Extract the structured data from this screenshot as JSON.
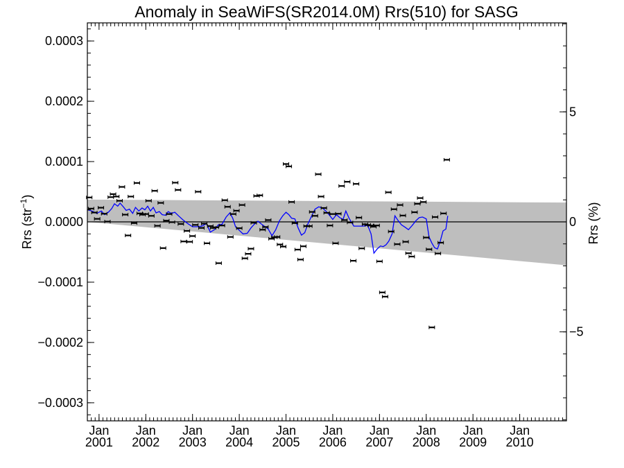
{
  "chart_data": {
    "type": "scatter",
    "title": "Anomaly in SeaWiFS(SR2014.0M) Rrs(510) for SASG",
    "ylabel_left": "Rrs (str",
    "ylabel_left_sup": "−1",
    "ylabel_left_close": ")",
    "ylabel_right": "Rrs (%)",
    "x_range": [
      2000.75,
      2011.0
    ],
    "ylim_left": [
      -0.00033,
      0.00033
    ],
    "ylim_right": [
      -9.045,
      9.045
    ],
    "y_ticks_left": [
      {
        "value": 0.0003,
        "label": "0.0003"
      },
      {
        "value": 0.0002,
        "label": "0.0002"
      },
      {
        "value": 0.0001,
        "label": "0.0001"
      },
      {
        "value": 0.0,
        "label": "0.0000"
      },
      {
        "value": -0.0001,
        "label": "−0.0001"
      },
      {
        "value": -0.0002,
        "label": "−0.0002"
      },
      {
        "value": -0.0003,
        "label": "−0.0003"
      }
    ],
    "y_ticks_right": [
      {
        "value": 5,
        "label": "5"
      },
      {
        "value": 0,
        "label": "0"
      },
      {
        "value": -5,
        "label": "−5"
      }
    ],
    "x_ticks": [
      {
        "value": 2001.0,
        "month": "Jan",
        "year": "2001"
      },
      {
        "value": 2002.0,
        "month": "Jan",
        "year": "2002"
      },
      {
        "value": 2003.0,
        "month": "Jan",
        "year": "2003"
      },
      {
        "value": 2004.0,
        "month": "Jan",
        "year": "2004"
      },
      {
        "value": 2005.0,
        "month": "Jan",
        "year": "2005"
      },
      {
        "value": 2006.0,
        "month": "Jan",
        "year": "2006"
      },
      {
        "value": 2007.0,
        "month": "Jan",
        "year": "2007"
      },
      {
        "value": 2008.0,
        "month": "Jan",
        "year": "2008"
      },
      {
        "value": 2009.0,
        "month": "Jan",
        "year": "2009"
      },
      {
        "value": 2010.0,
        "month": "Jan",
        "year": "2010"
      }
    ],
    "band": {
      "x": [
        2000.75,
        2011.0
      ],
      "upper": [
        3.7e-05,
        3.2e-05
      ],
      "lower": [
        0.0,
        -7.2e-05
      ]
    },
    "zero_line": 0.0,
    "colors": {
      "band": "#bebebe",
      "line": "#0000ff",
      "points": "#000000"
    },
    "points": [
      {
        "x": 2000.79,
        "y": 4.05e-05
      },
      {
        "x": 2000.83,
        "y": 2.2e-05
      },
      {
        "x": 2000.9,
        "y": 1.55e-05
      },
      {
        "x": 2000.96,
        "y": 5e-06
      },
      {
        "x": 2001.04,
        "y": 2.35e-05
      },
      {
        "x": 2001.11,
        "y": 1.35e-05
      },
      {
        "x": 2001.18,
        "y": 5e-07
      },
      {
        "x": 2001.25,
        "y": 4.1e-05
      },
      {
        "x": 2001.3,
        "y": 4.6e-05
      },
      {
        "x": 2001.37,
        "y": 4.2e-05
      },
      {
        "x": 2001.44,
        "y": 3.5e-05
      },
      {
        "x": 2001.49,
        "y": 5.8e-05
      },
      {
        "x": 2001.56,
        "y": 1.2e-05
      },
      {
        "x": 2001.62,
        "y": -2.25e-05
      },
      {
        "x": 2001.68,
        "y": 4.2e-05
      },
      {
        "x": 2001.75,
        "y": -2e-06
      },
      {
        "x": 2001.81,
        "y": 6.45e-05
      },
      {
        "x": 2001.87,
        "y": 1.4e-05
      },
      {
        "x": 2001.93,
        "y": 1.2e-05
      },
      {
        "x": 2002.0,
        "y": 1.3e-05
      },
      {
        "x": 2002.06,
        "y": 3.5e-05
      },
      {
        "x": 2002.12,
        "y": 1e-05
      },
      {
        "x": 2002.19,
        "y": 5.15e-05
      },
      {
        "x": 2002.25,
        "y": -6.5e-06
      },
      {
        "x": 2002.32,
        "y": 3.15e-05
      },
      {
        "x": 2002.37,
        "y": -4.35e-05
      },
      {
        "x": 2002.44,
        "y": 2e-06
      },
      {
        "x": 2002.5,
        "y": 1.3e-05
      },
      {
        "x": 2002.56,
        "y": -5e-07
      },
      {
        "x": 2002.63,
        "y": 6.5e-05
      },
      {
        "x": 2002.69,
        "y": 5.3e-05
      },
      {
        "x": 2002.75,
        "y": -3.5e-06
      },
      {
        "x": 2002.81,
        "y": -3.25e-05
      },
      {
        "x": 2002.88,
        "y": -1.5e-05
      },
      {
        "x": 2002.94,
        "y": -3.3e-05
      },
      {
        "x": 2003.0,
        "y": -2.35e-05
      },
      {
        "x": 2003.06,
        "y": -5e-06
      },
      {
        "x": 2003.12,
        "y": 5e-05
      },
      {
        "x": 2003.19,
        "y": -1e-05
      },
      {
        "x": 2003.25,
        "y": -3e-06
      },
      {
        "x": 2003.31,
        "y": -3.55e-05
      },
      {
        "x": 2003.38,
        "y": -7e-06
      },
      {
        "x": 2003.44,
        "y": -1e-05
      },
      {
        "x": 2003.5,
        "y": -9e-06
      },
      {
        "x": 2003.56,
        "y": -6.85e-05
      },
      {
        "x": 2003.63,
        "y": -6e-06
      },
      {
        "x": 2003.69,
        "y": 3.6e-05
      },
      {
        "x": 2003.75,
        "y": 2.5e-05
      },
      {
        "x": 2003.81,
        "y": -2.5e-05
      },
      {
        "x": 2003.87,
        "y": 1.3e-05
      },
      {
        "x": 2003.94,
        "y": 1.85e-05
      },
      {
        "x": 2004.0,
        "y": -1.05e-05
      },
      {
        "x": 2004.06,
        "y": 2.8e-05
      },
      {
        "x": 2004.12,
        "y": -6.05e-05
      },
      {
        "x": 2004.19,
        "y": -5.3e-05
      },
      {
        "x": 2004.25,
        "y": -4.45e-05
      },
      {
        "x": 2004.31,
        "y": -1.5e-06
      },
      {
        "x": 2004.37,
        "y": 4.3e-05
      },
      {
        "x": 2004.44,
        "y": 4.4e-05
      },
      {
        "x": 2004.5,
        "y": -1.3e-05
      },
      {
        "x": 2004.56,
        "y": -8.5e-06
      },
      {
        "x": 2004.62,
        "y": 3e-06
      },
      {
        "x": 2004.69,
        "y": -2.8e-05
      },
      {
        "x": 2004.75,
        "y": -2.55e-05
      },
      {
        "x": 2004.81,
        "y": -2.5e-05
      },
      {
        "x": 2004.87,
        "y": -3.75e-05
      },
      {
        "x": 2004.94,
        "y": -4.1e-05
      },
      {
        "x": 2005.0,
        "y": 9.6e-05
      },
      {
        "x": 2005.06,
        "y": 9.2e-05
      },
      {
        "x": 2005.12,
        "y": 3.3e-05
      },
      {
        "x": 2005.19,
        "y": -2e-06
      },
      {
        "x": 2005.25,
        "y": -4.6e-05
      },
      {
        "x": 2005.31,
        "y": -6.25e-05
      },
      {
        "x": 2005.37,
        "y": -4.05e-05
      },
      {
        "x": 2005.44,
        "y": -7e-06
      },
      {
        "x": 2005.5,
        "y": -7e-06
      },
      {
        "x": 2005.56,
        "y": 1.65e-05
      },
      {
        "x": 2005.62,
        "y": 1e-05
      },
      {
        "x": 2005.69,
        "y": 7.9e-05
      },
      {
        "x": 2005.75,
        "y": 4.2e-05
      },
      {
        "x": 2005.81,
        "y": 2.3e-05
      },
      {
        "x": 2005.87,
        "y": 1.5e-05
      },
      {
        "x": 2005.94,
        "y": -6e-06
      },
      {
        "x": 2006.0,
        "y": 1.3e-05
      },
      {
        "x": 2006.06,
        "y": -3.55e-05
      },
      {
        "x": 2006.12,
        "y": 1.35e-05
      },
      {
        "x": 2006.19,
        "y": 5.95e-05
      },
      {
        "x": 2006.25,
        "y": 3e-06
      },
      {
        "x": 2006.31,
        "y": 6.65e-05
      },
      {
        "x": 2006.37,
        "y": -1e-06
      },
      {
        "x": 2006.44,
        "y": -6.45e-05
      },
      {
        "x": 2006.5,
        "y": 6.3e-05
      },
      {
        "x": 2006.56,
        "y": 7e-06
      },
      {
        "x": 2006.62,
        "y": -4.4e-05
      },
      {
        "x": 2006.69,
        "y": -4e-06
      },
      {
        "x": 2006.75,
        "y": -5e-06
      },
      {
        "x": 2006.81,
        "y": -6e-06
      },
      {
        "x": 2006.87,
        "y": -8e-06
      },
      {
        "x": 2006.94,
        "y": -6e-06
      },
      {
        "x": 2007.0,
        "y": -6.55e-05
      },
      {
        "x": 2007.06,
        "y": -0.000117
      },
      {
        "x": 2007.12,
        "y": -0.000124
      },
      {
        "x": 2007.19,
        "y": 4.9e-05
      },
      {
        "x": 2007.25,
        "y": -1.6e-05
      },
      {
        "x": 2007.31,
        "y": 2.1e-05
      },
      {
        "x": 2007.38,
        "y": -3.7e-05
      },
      {
        "x": 2007.44,
        "y": 2.8e-05
      },
      {
        "x": 2007.5,
        "y": 1.05e-05
      },
      {
        "x": 2007.56,
        "y": -3.3e-05
      },
      {
        "x": 2007.62,
        "y": -5.2e-05
      },
      {
        "x": 2007.69,
        "y": -5.75e-05
      },
      {
        "x": 2007.75,
        "y": 1.6e-05
      },
      {
        "x": 2007.81,
        "y": 3e-05
      },
      {
        "x": 2007.87,
        "y": 3.95e-05
      },
      {
        "x": 2007.94,
        "y": 3.3e-05
      },
      {
        "x": 2008.0,
        "y": -2.6e-05
      },
      {
        "x": 2008.06,
        "y": -4.55e-05
      },
      {
        "x": 2008.12,
        "y": -0.000175
      },
      {
        "x": 2008.19,
        "y": 8e-06
      },
      {
        "x": 2008.25,
        "y": -5.25e-05
      },
      {
        "x": 2008.31,
        "y": -3.45e-05
      },
      {
        "x": 2008.37,
        "y": 1.4e-05
      },
      {
        "x": 2008.44,
        "y": 0.000103
      }
    ],
    "line": [
      {
        "x": 2000.75,
        "y": 2e-05
      },
      {
        "x": 2000.85,
        "y": 1.8e-05
      },
      {
        "x": 2000.95,
        "y": 1.4e-05
      },
      {
        "x": 2001.05,
        "y": 1.8e-05
      },
      {
        "x": 2001.12,
        "y": 1.2e-05
      },
      {
        "x": 2001.2,
        "y": 1.6e-05
      },
      {
        "x": 2001.27,
        "y": 2.2e-05
      },
      {
        "x": 2001.33,
        "y": 3e-05
      },
      {
        "x": 2001.4,
        "y": 2.6e-05
      },
      {
        "x": 2001.45,
        "y": 3.1e-05
      },
      {
        "x": 2001.52,
        "y": 2.5e-05
      },
      {
        "x": 2001.58,
        "y": 1.9e-05
      },
      {
        "x": 2001.65,
        "y": 2.1e-05
      },
      {
        "x": 2001.72,
        "y": 1.4e-05
      },
      {
        "x": 2001.78,
        "y": 2.4e-05
      },
      {
        "x": 2001.85,
        "y": 1.8e-05
      },
      {
        "x": 2001.92,
        "y": 2.3e-05
      },
      {
        "x": 2001.98,
        "y": 2e-05
      },
      {
        "x": 2002.04,
        "y": 2.6e-05
      },
      {
        "x": 2002.1,
        "y": 1.8e-05
      },
      {
        "x": 2002.16,
        "y": 2.4e-05
      },
      {
        "x": 2002.22,
        "y": 1.5e-05
      },
      {
        "x": 2002.29,
        "y": 1.7e-05
      },
      {
        "x": 2002.35,
        "y": 1.2e-05
      },
      {
        "x": 2002.42,
        "y": 1.1e-05
      },
      {
        "x": 2002.48,
        "y": 1.7e-05
      },
      {
        "x": 2002.55,
        "y": 1.4e-05
      },
      {
        "x": 2002.62,
        "y": 1.6e-05
      },
      {
        "x": 2002.7,
        "y": 1e-05
      },
      {
        "x": 2002.8,
        "y": 3e-06
      },
      {
        "x": 2002.9,
        "y": -3e-06
      },
      {
        "x": 2003.0,
        "y": -8e-06
      },
      {
        "x": 2003.1,
        "y": -8e-06
      },
      {
        "x": 2003.2,
        "y": -7e-06
      },
      {
        "x": 2003.3,
        "y": -3e-06
      },
      {
        "x": 2003.38,
        "y": -1.7e-05
      },
      {
        "x": 2003.47,
        "y": -1.3e-05
      },
      {
        "x": 2003.55,
        "y": -5e-06
      },
      {
        "x": 2003.63,
        "y": -4e-06
      },
      {
        "x": 2003.72,
        "y": 8e-06
      },
      {
        "x": 2003.8,
        "y": 1.5e-05
      },
      {
        "x": 2003.86,
        "y": 6e-06
      },
      {
        "x": 2003.92,
        "y": -8e-06
      },
      {
        "x": 2004.0,
        "y": -1.4e-05
      },
      {
        "x": 2004.08,
        "y": -2e-05
      },
      {
        "x": 2004.17,
        "y": -1.9e-05
      },
      {
        "x": 2004.25,
        "y": -1e-05
      },
      {
        "x": 2004.32,
        "y": -4e-06
      },
      {
        "x": 2004.4,
        "y": 1e-06
      },
      {
        "x": 2004.48,
        "y": -4e-06
      },
      {
        "x": 2004.55,
        "y": -8e-06
      },
      {
        "x": 2004.62,
        "y": -1.2e-05
      },
      {
        "x": 2004.7,
        "y": -2.3e-05
      },
      {
        "x": 2004.78,
        "y": -1.3e-05
      },
      {
        "x": 2004.86,
        "y": 2e-06
      },
      {
        "x": 2004.93,
        "y": 1e-05
      },
      {
        "x": 2005.0,
        "y": 1.6e-05
      },
      {
        "x": 2005.06,
        "y": 1.2e-05
      },
      {
        "x": 2005.12,
        "y": 6e-06
      },
      {
        "x": 2005.19,
        "y": 5e-06
      },
      {
        "x": 2005.26,
        "y": -1e-05
      },
      {
        "x": 2005.33,
        "y": -2.2e-05
      },
      {
        "x": 2005.4,
        "y": -1.8e-05
      },
      {
        "x": 2005.47,
        "y": -3e-06
      },
      {
        "x": 2005.55,
        "y": 1e-05
      },
      {
        "x": 2005.62,
        "y": 2.1e-05
      },
      {
        "x": 2005.7,
        "y": 2.5e-05
      },
      {
        "x": 2005.78,
        "y": 2.3e-05
      },
      {
        "x": 2005.85,
        "y": 1.8e-05
      },
      {
        "x": 2005.92,
        "y": 1.2e-05
      },
      {
        "x": 2006.0,
        "y": 4e-06
      },
      {
        "x": 2006.08,
        "y": 1.2e-05
      },
      {
        "x": 2006.15,
        "y": 7e-06
      },
      {
        "x": 2006.22,
        "y": 4e-06
      },
      {
        "x": 2006.28,
        "y": 1.8e-05
      },
      {
        "x": 2006.35,
        "y": 6e-06
      },
      {
        "x": 2006.45,
        "y": -7e-06
      },
      {
        "x": 2006.55,
        "y": -7e-06
      },
      {
        "x": 2006.65,
        "y": -7e-06
      },
      {
        "x": 2006.75,
        "y": -6e-06
      },
      {
        "x": 2006.82,
        "y": -2e-05
      },
      {
        "x": 2006.88,
        "y": -5.2e-05
      },
      {
        "x": 2006.95,
        "y": -4.5e-05
      },
      {
        "x": 2007.02,
        "y": -4e-05
      },
      {
        "x": 2007.08,
        "y": -4.1e-05
      },
      {
        "x": 2007.14,
        "y": -3.8e-05
      },
      {
        "x": 2007.2,
        "y": -3.2e-05
      },
      {
        "x": 2007.27,
        "y": -2e-05
      },
      {
        "x": 2007.33,
        "y": 1e-05
      },
      {
        "x": 2007.4,
        "y": 2e-06
      },
      {
        "x": 2007.47,
        "y": -5e-06
      },
      {
        "x": 2007.55,
        "y": -9e-06
      },
      {
        "x": 2007.62,
        "y": -1.3e-05
      },
      {
        "x": 2007.7,
        "y": -6e-06
      },
      {
        "x": 2007.78,
        "y": 2e-06
      },
      {
        "x": 2007.85,
        "y": 7e-06
      },
      {
        "x": 2007.92,
        "y": 8e-06
      },
      {
        "x": 2008.0,
        "y": 5e-06
      },
      {
        "x": 2008.06,
        "y": -2.5e-05
      },
      {
        "x": 2008.12,
        "y": -3.5e-05
      },
      {
        "x": 2008.18,
        "y": -4.3e-05
      },
      {
        "x": 2008.24,
        "y": -4.5e-05
      },
      {
        "x": 2008.3,
        "y": -3.2e-05
      },
      {
        "x": 2008.36,
        "y": -1.5e-05
      },
      {
        "x": 2008.42,
        "y": -1.2e-05
      },
      {
        "x": 2008.46,
        "y": 1e-05
      }
    ]
  }
}
